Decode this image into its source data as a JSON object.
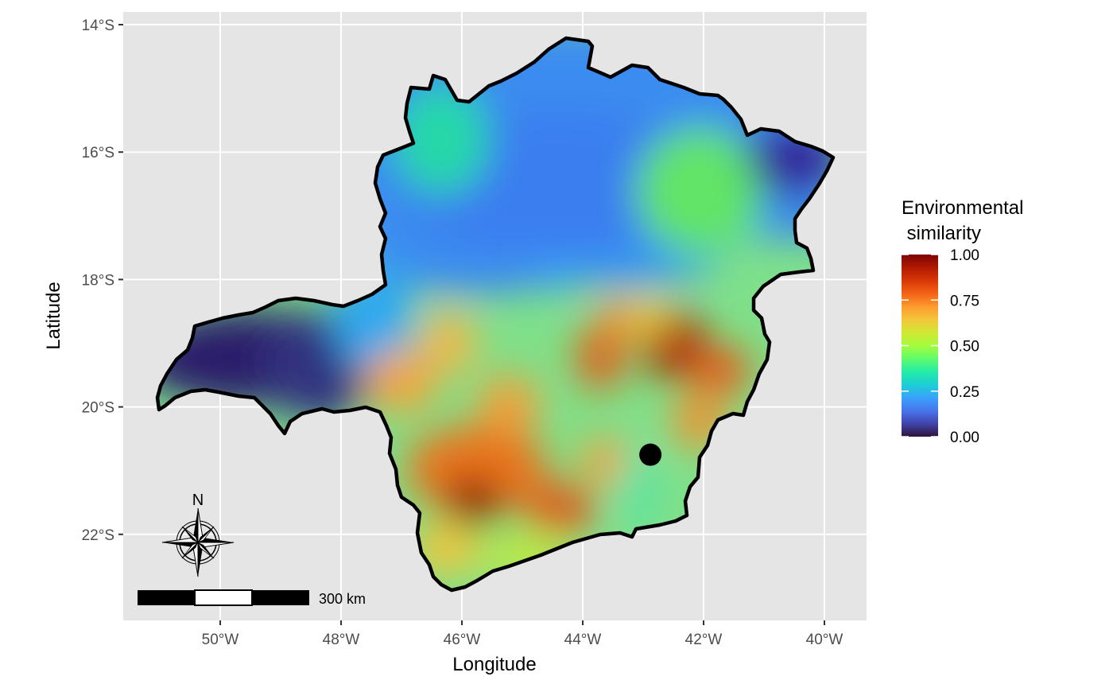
{
  "map": {
    "x_axis": {
      "title": "Longitude",
      "ticks": [
        {
          "label": "50°W",
          "value": -50
        },
        {
          "label": "48°W",
          "value": -48
        },
        {
          "label": "46°W",
          "value": -46
        },
        {
          "label": "44°W",
          "value": -44
        },
        {
          "label": "42°W",
          "value": -42
        },
        {
          "label": "40°W",
          "value": -40
        }
      ]
    },
    "y_axis": {
      "title": "Latitude",
      "ticks": [
        {
          "label": "14°S",
          "value": -14
        },
        {
          "label": "16°S",
          "value": -16
        },
        {
          "label": "18°S",
          "value": -18
        },
        {
          "label": "20°S",
          "value": -20
        },
        {
          "label": "22°S",
          "value": -22
        }
      ]
    },
    "legend": {
      "title_line1": "Environmental",
      "title_line2": " similarity",
      "labels": [
        "1.00",
        "0.75",
        "0.50",
        "0.25",
        "0.00"
      ],
      "values": [
        1.0,
        0.75,
        0.5,
        0.25,
        0.0
      ],
      "gradient_colors": [
        "#30123b",
        "#4145ab",
        "#4675ed",
        "#39a2fc",
        "#1bcfd4",
        "#24eca6",
        "#61fc6c",
        "#a4fc3b",
        "#d1e834",
        "#f3c63a",
        "#fe9b2d",
        "#f36315",
        "#d93806",
        "#b11901",
        "#7a0403"
      ]
    },
    "north_arrow": {
      "label": "N"
    },
    "scale_bar": {
      "label": "300 km"
    },
    "marker": {
      "lon": -42.88,
      "lat": -20.75,
      "color": "#000000"
    },
    "colors": {
      "panel_background": "#e5e5e5",
      "grid": "#ffffff",
      "boundary": "#000000"
    }
  }
}
